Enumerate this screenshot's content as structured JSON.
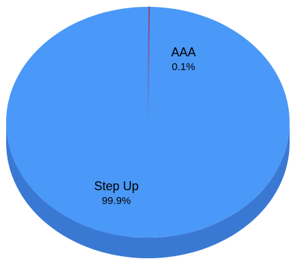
{
  "chart_data": {
    "type": "pie",
    "style": "3d",
    "slices": [
      {
        "label": "AAA",
        "percent_label": "0.1%",
        "value": 0.1,
        "color": "#c0143c"
      },
      {
        "label": "Step Up",
        "percent_label": "99.9%",
        "value": 99.9,
        "color": "#4a98f7"
      }
    ],
    "side_color": "#3a79d3",
    "legend": "none"
  }
}
